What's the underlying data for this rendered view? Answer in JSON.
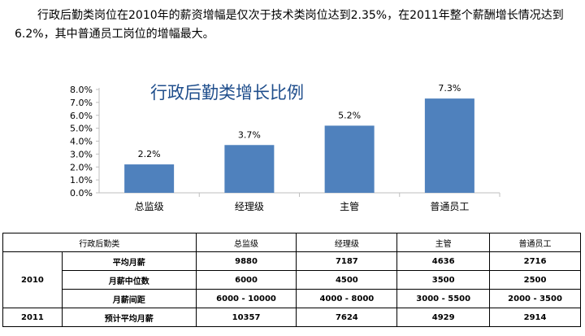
{
  "intro_text": "行政后勤类岗位在2010年的薪资增幅是仅次于技术类岗位达到2.35%，在2011年整个薪酬增长情况达到6.2%，其中普通员工岗位的增幅最大。",
  "colors": {
    "bar": "#4f81bd",
    "title": "#1f4e8c",
    "axis": "#bfbfbf"
  },
  "chart_data": {
    "type": "bar",
    "title": "行政后勤类增长比例",
    "categories": [
      "总监级",
      "经理级",
      "主管",
      "普通员工"
    ],
    "values": [
      2.2,
      3.7,
      5.2,
      7.3
    ],
    "value_labels": [
      "2.2%",
      "3.7%",
      "5.2%",
      "7.3%"
    ],
    "ylim": [
      0,
      8
    ],
    "yticks": [
      0,
      1,
      2,
      3,
      4,
      5,
      6,
      7,
      8
    ],
    "ytick_labels": [
      "0.0%",
      "1.0%",
      "2.0%",
      "3.0%",
      "4.0%",
      "5.0%",
      "6.0%",
      "7.0%",
      "8.0%"
    ],
    "grid": false,
    "legend": "none"
  },
  "table": {
    "header": [
      "行政后勤类",
      "总监级",
      "经理级",
      "主管",
      "普通员工"
    ],
    "groups": [
      {
        "year": "2010",
        "rows": [
          {
            "label": "平均月薪",
            "values": [
              "9880",
              "7187",
              "4636",
              "2716"
            ]
          },
          {
            "label": "月薪中位数",
            "values": [
              "6000",
              "4500",
              "3500",
              "2500"
            ]
          },
          {
            "label": "月薪间距",
            "values": [
              "6000 - 10000",
              "4000 - 8000",
              "3000 - 5500",
              "2000 - 3500"
            ]
          }
        ]
      },
      {
        "year": "2011",
        "rows": [
          {
            "label": "预计平均月薪",
            "values": [
              "10357",
              "7624",
              "4929",
              "2914"
            ]
          }
        ]
      }
    ]
  }
}
